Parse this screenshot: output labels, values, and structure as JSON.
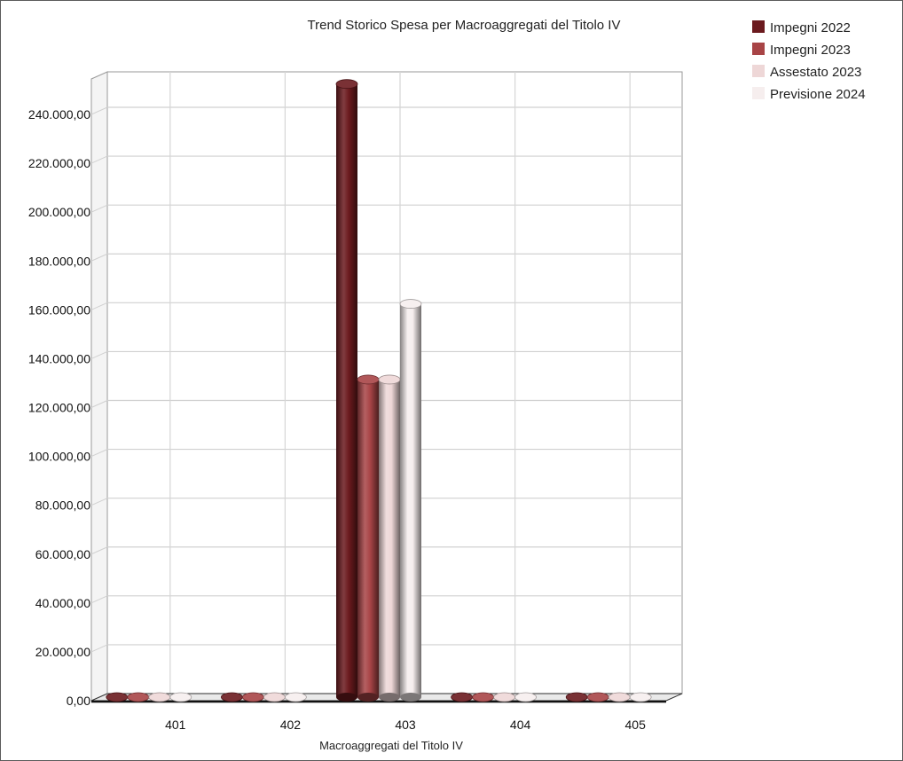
{
  "chart_data": {
    "type": "bar",
    "title": "Trend Storico Spesa per Macroaggregati del Titolo IV",
    "xlabel": "Macroaggregati del Titolo IV",
    "ylabel": "",
    "categories": [
      "401",
      "402",
      "403",
      "404",
      "405"
    ],
    "series": [
      {
        "name": "Impegni 2022",
        "values": [
          0,
          0,
          251000,
          0,
          0
        ],
        "color": "#6b1a1e"
      },
      {
        "name": "Impegni 2023",
        "values": [
          0,
          0,
          130000,
          0,
          0
        ],
        "color": "#a84446"
      },
      {
        "name": "Assestato 2023",
        "values": [
          0,
          0,
          130000,
          0,
          0
        ],
        "color": "#eed7d7"
      },
      {
        "name": "Previsione 2024",
        "values": [
          0,
          0,
          161000,
          0,
          0
        ],
        "color": "#f6eeee"
      }
    ],
    "ylim": [
      0,
      250000
    ],
    "yticks": [
      0,
      20000,
      40000,
      60000,
      80000,
      100000,
      120000,
      140000,
      160000,
      180000,
      200000,
      220000,
      240000
    ],
    "ytick_labels": [
      "0,00",
      "20.000,00",
      "40.000,00",
      "60.000,00",
      "80.000,00",
      "100.000,00",
      "120.000,00",
      "140.000,00",
      "160.000,00",
      "180.000,00",
      "200.000,00",
      "220.000,00",
      "240.000,00"
    ],
    "grid": true,
    "legend": "top-right",
    "style": "3d-cylinder"
  }
}
